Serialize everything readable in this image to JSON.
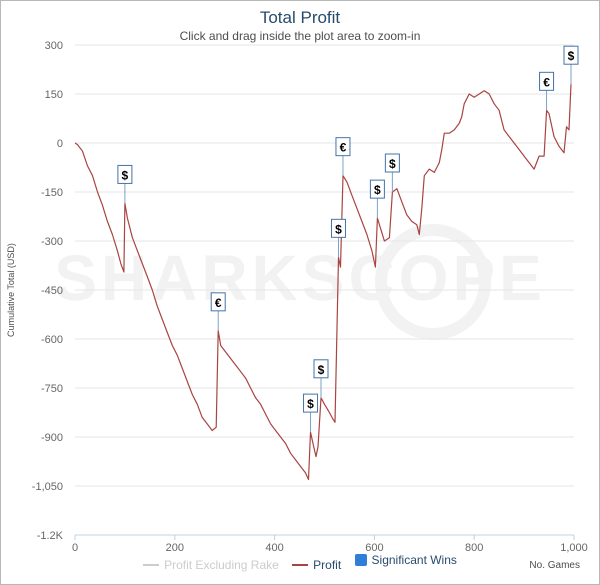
{
  "chart_data": {
    "type": "line",
    "title": "Total Profit",
    "subtitle": "Click and drag inside the plot area to zoom-in",
    "xlabel": "No. Games",
    "ylabel": "Cumulative Total (USD)",
    "xlim": [
      0,
      1000
    ],
    "ylim": [
      -1200,
      300
    ],
    "x_ticks": [
      "0",
      "200",
      "400",
      "600",
      "800",
      "1,000"
    ],
    "y_ticks": [
      "300",
      "150",
      "0",
      "-150",
      "-300",
      "-450",
      "-600",
      "-750",
      "-900",
      "-1,050",
      "-1.2K"
    ],
    "watermark": "SHARKSCOPE",
    "legend": [
      {
        "name": "Profit Excluding Rake",
        "color": "#cccccc",
        "visible": false
      },
      {
        "name": "Profit",
        "color": "#a94442",
        "visible": true
      },
      {
        "name": "Significant Wins",
        "color": "#2f7ed8",
        "visible": true
      }
    ],
    "series": [
      {
        "name": "Profit",
        "color": "#a94442",
        "points": [
          [
            0,
            0
          ],
          [
            5,
            -5
          ],
          [
            15,
            -25
          ],
          [
            25,
            -70
          ],
          [
            35,
            -100
          ],
          [
            45,
            -150
          ],
          [
            55,
            -190
          ],
          [
            65,
            -240
          ],
          [
            75,
            -280
          ],
          [
            85,
            -330
          ],
          [
            92,
            -370
          ],
          [
            98,
            -395
          ],
          [
            100,
            -185
          ],
          [
            105,
            -230
          ],
          [
            115,
            -290
          ],
          [
            125,
            -330
          ],
          [
            135,
            -370
          ],
          [
            145,
            -410
          ],
          [
            155,
            -450
          ],
          [
            165,
            -500
          ],
          [
            175,
            -540
          ],
          [
            185,
            -580
          ],
          [
            195,
            -620
          ],
          [
            205,
            -650
          ],
          [
            215,
            -690
          ],
          [
            225,
            -730
          ],
          [
            235,
            -770
          ],
          [
            245,
            -800
          ],
          [
            255,
            -840
          ],
          [
            265,
            -860
          ],
          [
            275,
            -880
          ],
          [
            283,
            -870
          ],
          [
            287,
            -575
          ],
          [
            292,
            -620
          ],
          [
            302,
            -640
          ],
          [
            312,
            -660
          ],
          [
            322,
            -680
          ],
          [
            332,
            -700
          ],
          [
            342,
            -720
          ],
          [
            352,
            -750
          ],
          [
            362,
            -780
          ],
          [
            372,
            -800
          ],
          [
            382,
            -830
          ],
          [
            392,
            -860
          ],
          [
            402,
            -880
          ],
          [
            412,
            -900
          ],
          [
            422,
            -920
          ],
          [
            432,
            -950
          ],
          [
            442,
            -970
          ],
          [
            452,
            -990
          ],
          [
            462,
            -1010
          ],
          [
            468,
            -1030
          ],
          [
            472,
            -885
          ],
          [
            477,
            -920
          ],
          [
            483,
            -960
          ],
          [
            487,
            -930
          ],
          [
            493,
            -780
          ],
          [
            500,
            -800
          ],
          [
            508,
            -820
          ],
          [
            515,
            -840
          ],
          [
            521,
            -855
          ],
          [
            528,
            -350
          ],
          [
            532,
            -380
          ],
          [
            537,
            -100
          ],
          [
            545,
            -120
          ],
          [
            555,
            -160
          ],
          [
            565,
            -200
          ],
          [
            575,
            -240
          ],
          [
            585,
            -280
          ],
          [
            595,
            -330
          ],
          [
            602,
            -380
          ],
          [
            606,
            -230
          ],
          [
            612,
            -260
          ],
          [
            620,
            -300
          ],
          [
            630,
            -290
          ],
          [
            636,
            -150
          ],
          [
            645,
            -140
          ],
          [
            655,
            -180
          ],
          [
            665,
            -220
          ],
          [
            675,
            -240
          ],
          [
            685,
            -250
          ],
          [
            690,
            -280
          ],
          [
            695,
            -200
          ],
          [
            700,
            -100
          ],
          [
            710,
            -80
          ],
          [
            720,
            -90
          ],
          [
            730,
            -60
          ],
          [
            735,
            -20
          ],
          [
            740,
            30
          ],
          [
            750,
            30
          ],
          [
            760,
            40
          ],
          [
            770,
            60
          ],
          [
            775,
            80
          ],
          [
            780,
            120
          ],
          [
            790,
            150
          ],
          [
            800,
            140
          ],
          [
            810,
            150
          ],
          [
            820,
            160
          ],
          [
            830,
            150
          ],
          [
            840,
            120
          ],
          [
            850,
            100
          ],
          [
            860,
            40
          ],
          [
            870,
            20
          ],
          [
            880,
            0
          ],
          [
            890,
            -20
          ],
          [
            900,
            -40
          ],
          [
            910,
            -60
          ],
          [
            920,
            -80
          ],
          [
            930,
            -40
          ],
          [
            940,
            -40
          ],
          [
            945,
            100
          ],
          [
            950,
            90
          ],
          [
            960,
            20
          ],
          [
            970,
            -10
          ],
          [
            980,
            -30
          ],
          [
            985,
            50
          ],
          [
            990,
            40
          ],
          [
            994,
            180
          ]
        ]
      }
    ],
    "significant_wins": [
      {
        "x": 100,
        "y": -185,
        "symbol": "$"
      },
      {
        "x": 287,
        "y": -575,
        "symbol": "€"
      },
      {
        "x": 472,
        "y": -885,
        "symbol": "$"
      },
      {
        "x": 493,
        "y": -780,
        "symbol": "$"
      },
      {
        "x": 528,
        "y": -350,
        "symbol": "$"
      },
      {
        "x": 537,
        "y": -100,
        "symbol": "€"
      },
      {
        "x": 606,
        "y": -230,
        "symbol": "$"
      },
      {
        "x": 636,
        "y": -150,
        "symbol": "$"
      },
      {
        "x": 945,
        "y": 100,
        "symbol": "€"
      },
      {
        "x": 994,
        "y": 180,
        "symbol": "$"
      }
    ]
  }
}
